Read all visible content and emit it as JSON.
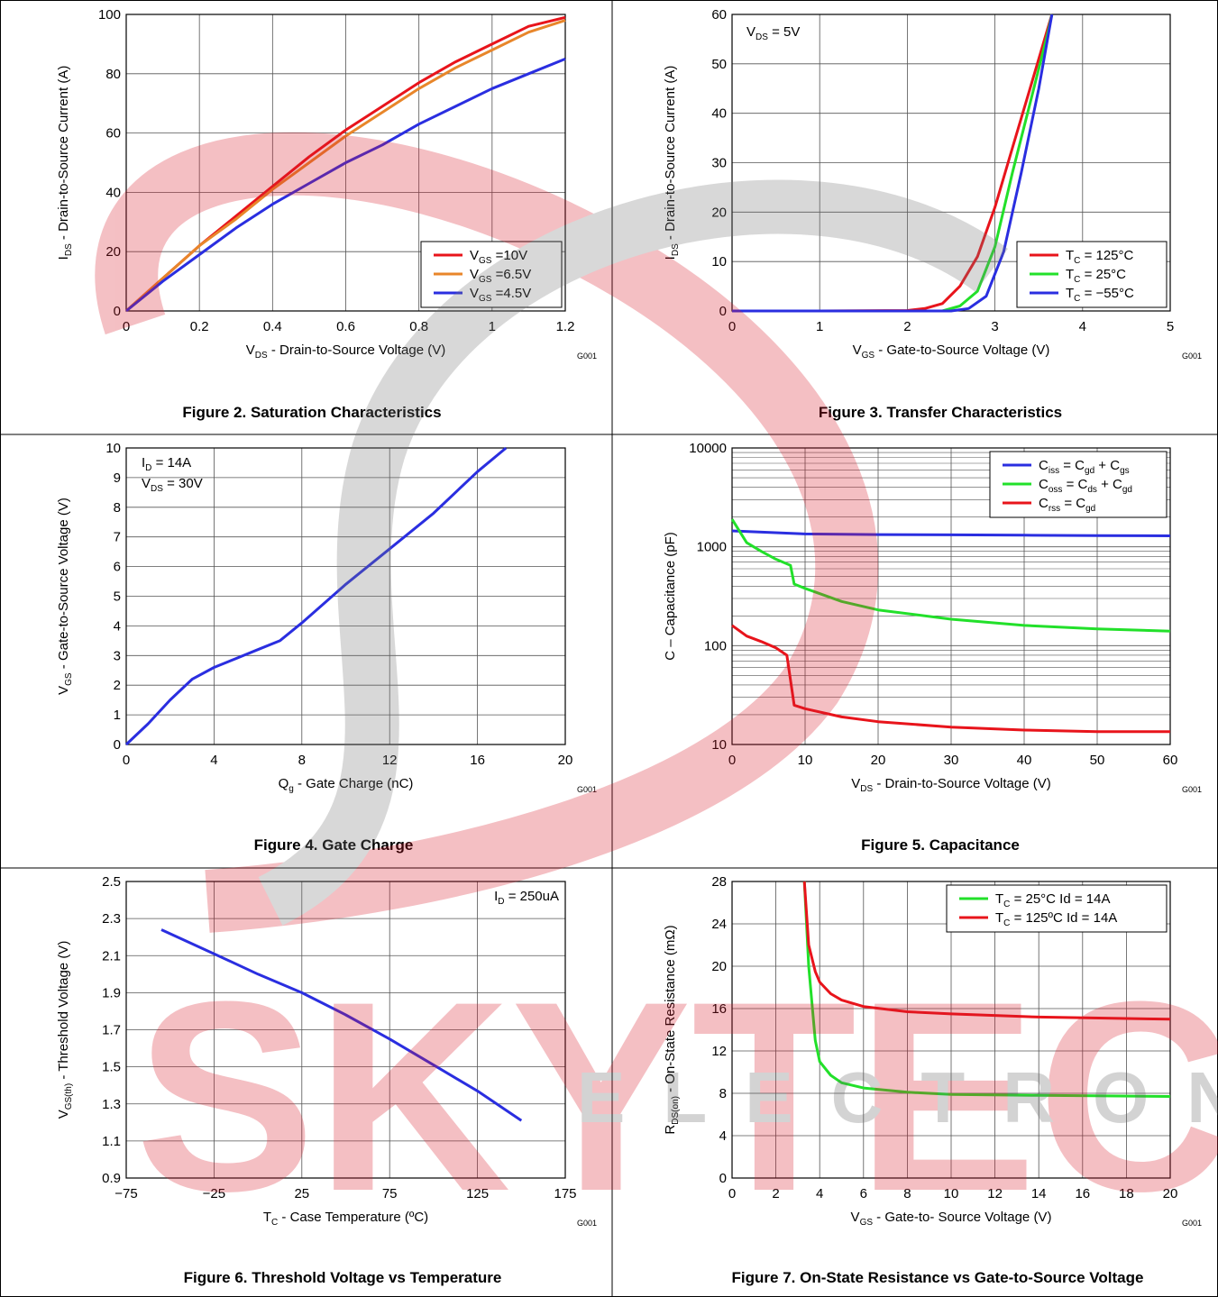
{
  "chart_data": [
    {
      "type": "line",
      "title": "Figure 2. Saturation Characteristics",
      "annotation_code": "G001",
      "xlabel": [
        "V",
        "DS",
        " - Drain-to-Source Voltage (V)"
      ],
      "ylabel": [
        "I",
        "DS",
        " - Drain-to-Source Current (A)"
      ],
      "xlim": [
        0,
        1.2
      ],
      "ylim": [
        0,
        100
      ],
      "xticks": [
        0,
        0.2,
        0.4,
        0.6,
        0.8,
        1,
        1.2
      ],
      "yticks": [
        0,
        20,
        40,
        60,
        80,
        100
      ],
      "grid": true,
      "legend": "lower right",
      "series": [
        {
          "name": [
            "V",
            "GS",
            " =10V"
          ],
          "color": "#e8141b",
          "x": [
            0,
            0.1,
            0.2,
            0.3,
            0.4,
            0.5,
            0.6,
            0.7,
            0.8,
            0.9,
            1.0,
            1.1,
            1.2
          ],
          "values": [
            0,
            11,
            22,
            32,
            42,
            52,
            61,
            69,
            77,
            84,
            90,
            96,
            99
          ]
        },
        {
          "name": [
            "V",
            "GS",
            " =6.5V"
          ],
          "color": "#e8862a",
          "x": [
            0,
            0.1,
            0.2,
            0.3,
            0.4,
            0.5,
            0.6,
            0.7,
            0.8,
            0.9,
            1.0,
            1.1,
            1.2
          ],
          "values": [
            0,
            11,
            22,
            31,
            41,
            50,
            59,
            67,
            75,
            82,
            88,
            94,
            98
          ]
        },
        {
          "name": [
            "V",
            "GS",
            " =4.5V"
          ],
          "color": "#2a2ee0",
          "x": [
            0,
            0.1,
            0.2,
            0.3,
            0.4,
            0.5,
            0.6,
            0.7,
            0.8,
            0.9,
            1.0,
            1.1,
            1.2
          ],
          "values": [
            0,
            10,
            19,
            28,
            36,
            43,
            50,
            56,
            63,
            69,
            75,
            80,
            85
          ]
        }
      ]
    },
    {
      "type": "line",
      "title": "Figure 3. Transfer Characteristics",
      "annotation_code": "G001",
      "annotations": [
        [
          "V",
          "DS",
          " = 5V"
        ]
      ],
      "xlabel": [
        "V",
        "GS",
        " - Gate-to-Source Voltage (V)"
      ],
      "ylabel": [
        "I",
        "DS",
        " - Drain-to-Source Current  (A)"
      ],
      "xlim": [
        0,
        5
      ],
      "ylim": [
        0,
        60
      ],
      "xticks": [
        0,
        1,
        2,
        3,
        4,
        5
      ],
      "yticks": [
        0,
        10,
        20,
        30,
        40,
        50,
        60
      ],
      "grid": true,
      "legend": "lower right",
      "series": [
        {
          "name": [
            "T",
            "C",
            " = 125°C"
          ],
          "color": "#e8141b",
          "x": [
            0,
            1,
            2,
            2.2,
            2.4,
            2.6,
            2.8,
            3.0,
            3.2,
            3.4,
            3.6,
            3.65
          ],
          "values": [
            0,
            0,
            0.1,
            0.5,
            1.5,
            5,
            11,
            21,
            33,
            45,
            57,
            60
          ]
        },
        {
          "name": [
            "T",
            "C",
            " = 25°C"
          ],
          "color": "#22e02a",
          "x": [
            0,
            1,
            2,
            2.4,
            2.6,
            2.8,
            3.0,
            3.2,
            3.4,
            3.6,
            3.65
          ],
          "values": [
            0,
            0,
            0,
            0,
            1,
            4,
            13,
            28,
            42,
            56,
            60
          ]
        },
        {
          "name": [
            "T",
            "C",
            " = −55°C"
          ],
          "color": "#2a2ee0",
          "x": [
            0,
            1,
            2,
            2.5,
            2.7,
            2.9,
            3.1,
            3.3,
            3.5,
            3.65
          ],
          "values": [
            0,
            0,
            0,
            0,
            0.5,
            3,
            12,
            28,
            45,
            60
          ]
        }
      ]
    },
    {
      "type": "line",
      "title": "Figure 4. Gate Charge",
      "annotation_code": "G001",
      "annotations": [
        [
          "I",
          "D",
          " = 14A"
        ],
        [
          "V",
          "DS",
          " = 30V"
        ]
      ],
      "xlabel": [
        "Q",
        "g",
        " - Gate Charge  (nC)"
      ],
      "ylabel": [
        "V",
        "GS",
        " - Gate-to-Source Voltage (V)"
      ],
      "xlim": [
        0,
        20
      ],
      "ylim": [
        0,
        10
      ],
      "xticks": [
        0,
        4,
        8,
        12,
        16,
        20
      ],
      "yticks": [
        0,
        1,
        2,
        3,
        4,
        5,
        6,
        7,
        8,
        9,
        10
      ],
      "grid": true,
      "series": [
        {
          "color": "#2a2ee0",
          "x": [
            0,
            1,
            2,
            3,
            4,
            5,
            6,
            7,
            8,
            10,
            12,
            14,
            16,
            17.3
          ],
          "values": [
            0,
            0.7,
            1.5,
            2.2,
            2.6,
            2.9,
            3.2,
            3.5,
            4.1,
            5.4,
            6.6,
            7.8,
            9.2,
            10
          ]
        }
      ]
    },
    {
      "type": "line",
      "title": "Figure 5. Capacitance",
      "annotation_code": "G001",
      "xlabel": [
        "V",
        "DS",
        " - Drain-to-Source Voltage (V)"
      ],
      "ylabel": [
        "C – Capacitance  (pF)"
      ],
      "xlim": [
        0,
        60
      ],
      "ylim": [
        10,
        10000
      ],
      "yscale": "log",
      "minor_grid": true,
      "xticks": [
        0,
        10,
        20,
        30,
        40,
        50,
        60
      ],
      "yticks": [
        10,
        100,
        1000,
        10000
      ],
      "grid": true,
      "legend": "upper right",
      "series": [
        {
          "name": [
            "C",
            "iss",
            " = C",
            "gd",
            " + C",
            "gs"
          ],
          "color": "#2a2ee0",
          "x": [
            0,
            10,
            20,
            30,
            40,
            50,
            60
          ],
          "values": [
            1450,
            1350,
            1330,
            1320,
            1310,
            1300,
            1290
          ]
        },
        {
          "name": [
            "C",
            "oss",
            " = C",
            "ds",
            " + C",
            "gd"
          ],
          "color": "#22e02a",
          "x": [
            0,
            2,
            4,
            6,
            8,
            8.5,
            10,
            15,
            20,
            30,
            40,
            50,
            60
          ],
          "values": [
            1900,
            1100,
            900,
            750,
            650,
            420,
            380,
            280,
            230,
            185,
            160,
            148,
            140
          ]
        },
        {
          "name": [
            "C",
            "rss",
            " =  C",
            "gd"
          ],
          "color": "#e8141b",
          "x": [
            0,
            2,
            4,
            6,
            7.5,
            8.5,
            10,
            15,
            20,
            30,
            40,
            50,
            60
          ],
          "values": [
            160,
            125,
            110,
            95,
            80,
            25,
            23,
            19,
            17,
            15,
            14,
            13.5,
            13.5
          ]
        }
      ]
    },
    {
      "type": "line",
      "title": "Figure 6. Threshold Voltage vs Temperature",
      "annotation_code": "G001",
      "annotations": [
        [
          "I",
          "D",
          " = 250uA"
        ]
      ],
      "xlabel": [
        "T",
        "C",
        " - Case Temperature (ºC)"
      ],
      "ylabel": [
        "V",
        "GS(th)",
        " - Threshold Voltage (V)"
      ],
      "xlim": [
        -75,
        175
      ],
      "ylim": [
        0.9,
        2.5
      ],
      "xticks": [
        {
          "value": -75,
          "label": "−75"
        },
        {
          "value": -25,
          "label": "−25"
        },
        25,
        75,
        125,
        175
      ],
      "yticks": [
        0.9,
        1.1,
        1.3,
        1.5,
        1.7,
        1.9,
        2.1,
        2.3,
        2.5
      ],
      "grid": true,
      "series": [
        {
          "color": "#2a2ee0",
          "x": [
            -55,
            -25,
            0,
            25,
            50,
            75,
            100,
            125,
            150
          ],
          "values": [
            2.24,
            2.11,
            2.0,
            1.9,
            1.78,
            1.65,
            1.51,
            1.37,
            1.21
          ]
        }
      ]
    },
    {
      "type": "line",
      "title": "Figure 7. On-State Resistance vs Gate-to-Source Voltage",
      "annotation_code": "G001",
      "xlabel": [
        "V",
        "GS",
        " - Gate-to- Source Voltage (V)"
      ],
      "ylabel": [
        "R",
        "DS(on)",
        " - On-State Resistance  (mΩ)"
      ],
      "xlim": [
        0,
        20
      ],
      "ylim": [
        0,
        28
      ],
      "xticks": [
        0,
        2,
        4,
        6,
        8,
        10,
        12,
        14,
        16,
        18,
        20
      ],
      "yticks": [
        0,
        4,
        8,
        12,
        16,
        20,
        24,
        28
      ],
      "grid": true,
      "legend": "upper right",
      "series": [
        {
          "name": [
            "T",
            "C",
            " = 25°C   Id = 14A"
          ],
          "color": "#22e02a",
          "x": [
            3.3,
            3.5,
            3.8,
            4,
            4.5,
            5,
            6,
            8,
            10,
            14,
            20
          ],
          "values": [
            28,
            20,
            13,
            11,
            9.7,
            9,
            8.5,
            8.1,
            7.9,
            7.8,
            7.7
          ]
        },
        {
          "name": [
            "T",
            "C",
            " = 125ºC Id = 14A"
          ],
          "color": "#e8141b",
          "x": [
            3.3,
            3.5,
            3.8,
            4,
            4.5,
            5,
            6,
            8,
            10,
            14,
            20
          ],
          "values": [
            28,
            22,
            19.5,
            18.5,
            17.4,
            16.8,
            16.2,
            15.7,
            15.5,
            15.2,
            15.0
          ]
        }
      ]
    }
  ],
  "watermark": {
    "brand": "SKYTECH",
    "tagline": "ELECTRONIC"
  }
}
